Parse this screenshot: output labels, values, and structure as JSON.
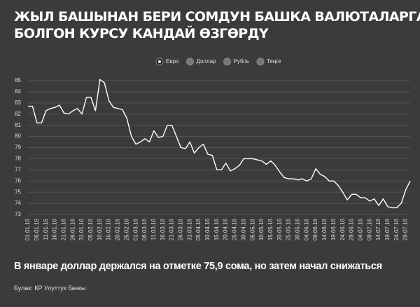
{
  "chart_data": {
    "type": "line",
    "title_lines": [
      "ЖЫЛ БАШЫНАН БЕРИ СОМДУН БАШКА ВАЛЮТАЛАРГА",
      "БОЛГОН КУРСУ КАНДАЙ ӨЗГӨРДҮ"
    ],
    "subtitle": "В январе доллар держался на отметке 75,9 сома, но затем начал снижаться",
    "source": "Булак: КР Улуттук банкы",
    "inactive_legend": [
      "Доллар",
      "Рубль",
      "Теңге"
    ],
    "categories": [
      "01.01.16",
      null,
      "06.01.16",
      null,
      "11.01.16",
      null,
      "16.01.16",
      null,
      "21.01.16",
      null,
      "26.01.16",
      null,
      "31.01.16",
      null,
      "05.02.16",
      null,
      "10.02.16",
      null,
      "15.02.16",
      null,
      "20.02.16",
      null,
      "25.02.16",
      null,
      "01.03.16",
      null,
      "06.03.16",
      null,
      "11.03.16",
      null,
      "16.03.16",
      null,
      "21.03.16",
      null,
      "26.03.16",
      null,
      "31.03.16",
      null,
      "05.04.16",
      null,
      "10.04.16",
      null,
      "15.04.16",
      null,
      "20.04.16",
      null,
      "25.04.16",
      null,
      "30.04.16",
      null,
      "05.05.16",
      null,
      "10.05.16",
      null,
      "15.05.16",
      null,
      "20.05.16",
      null,
      "25.05.16",
      null,
      "30.05.16",
      null,
      "04.06.16",
      null,
      "09.06.16",
      null,
      "14.06.16",
      null,
      "19.06.16",
      null,
      "24.06.16",
      null,
      "29.06.16",
      null,
      "04.07.16",
      null,
      "09.07.16",
      null,
      "14.07.16",
      null,
      "19.07.16",
      null,
      "24.07.16",
      null,
      "29.07.16",
      null
    ],
    "series": [
      {
        "name": "Евро",
        "color": "#ffffff",
        "values": [
          82.7,
          82.7,
          81.2,
          81.2,
          82.3,
          82.5,
          82.6,
          82.8,
          82.1,
          82.0,
          82.3,
          82.5,
          82.0,
          83.5,
          83.5,
          82.3,
          85.1,
          84.8,
          83.2,
          82.6,
          82.5,
          82.4,
          81.6,
          80.0,
          79.3,
          79.5,
          79.8,
          79.5,
          80.5,
          79.9,
          80.0,
          81.0,
          81.0,
          80.0,
          79.0,
          78.9,
          79.5,
          78.5,
          79.0,
          79.3,
          78.4,
          78.3,
          77.0,
          77.0,
          77.6,
          76.9,
          77.1,
          77.4,
          78.0,
          78.0,
          78.0,
          77.9,
          77.8,
          77.5,
          77.8,
          77.4,
          76.8,
          76.3,
          76.2,
          76.2,
          76.1,
          76.2,
          76.0,
          76.2,
          77.1,
          76.6,
          76.4,
          76.0,
          76.0,
          75.6,
          75.0,
          74.3,
          74.8,
          74.8,
          74.5,
          74.5,
          74.2,
          74.4,
          73.8,
          74.4,
          73.7,
          73.6,
          73.6,
          74.0,
          75.2,
          76.0
        ]
      }
    ],
    "ylim": [
      73,
      85
    ],
    "yticks": [
      73,
      74,
      75,
      76,
      77,
      78,
      79,
      80,
      81,
      82,
      83,
      84,
      85
    ],
    "grid": true
  }
}
